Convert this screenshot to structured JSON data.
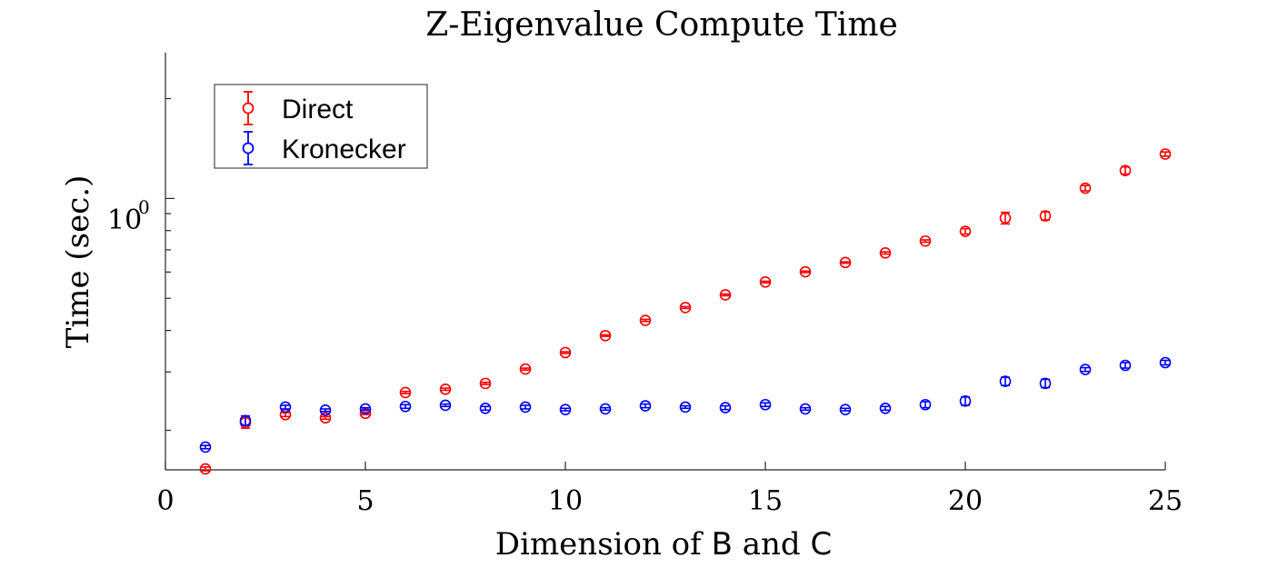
{
  "chart_data": {
    "type": "scatter",
    "title": "Z-Eigenvalue Compute Time",
    "xlabel": {
      "prefix": "Dimension of ",
      "b": "B",
      "middle": " and ",
      "c": "C"
    },
    "ylabel": "Time (sec.)",
    "xlim": [
      0,
      25
    ],
    "ylim": [
      0.152,
      2.75
    ],
    "yscale": "log",
    "x_ticks": [
      0,
      5,
      10,
      15,
      20,
      25
    ],
    "x_tick_labels": [
      "0",
      "5",
      "10",
      "15",
      "20",
      "25"
    ],
    "y_major_tick": {
      "value": 1,
      "base": "10",
      "exponent": "0"
    },
    "grid": false,
    "legend": "top-left",
    "series": [
      {
        "name": "Direct",
        "color": "#ff0000",
        "x": [
          1,
          2,
          3,
          4,
          5,
          6,
          7,
          8,
          9,
          10,
          11,
          12,
          13,
          14,
          15,
          16,
          17,
          18,
          19,
          20,
          21,
          22,
          23,
          24,
          25
        ],
        "y": [
          0.153,
          0.211,
          0.223,
          0.218,
          0.225,
          0.26,
          0.266,
          0.277,
          0.306,
          0.343,
          0.386,
          0.429,
          0.469,
          0.512,
          0.56,
          0.601,
          0.641,
          0.685,
          0.744,
          0.796,
          0.873,
          0.886,
          1.074,
          1.214,
          1.361
        ],
        "err": [
          0.002,
          0.008,
          0.003,
          0.002,
          0.002,
          0.002,
          0.002,
          0.002,
          0.002,
          0.002,
          0.002,
          0.003,
          0.003,
          0.003,
          0.003,
          0.003,
          0.003,
          0.005,
          0.006,
          0.015,
          0.035,
          0.025,
          0.02,
          0.03,
          0.02
        ]
      },
      {
        "name": "Kronecker",
        "color": "#0000ff",
        "x": [
          1,
          2,
          3,
          4,
          5,
          6,
          7,
          8,
          9,
          10,
          11,
          12,
          13,
          14,
          15,
          16,
          17,
          18,
          19,
          20,
          21,
          22,
          23,
          24,
          25
        ],
        "y": [
          0.178,
          0.214,
          0.235,
          0.23,
          0.232,
          0.236,
          0.238,
          0.233,
          0.235,
          0.231,
          0.232,
          0.237,
          0.235,
          0.234,
          0.239,
          0.232,
          0.231,
          0.233,
          0.239,
          0.245,
          0.281,
          0.277,
          0.305,
          0.314,
          0.32
        ],
        "err": [
          0.002,
          0.007,
          0.003,
          0.002,
          0.002,
          0.003,
          0.002,
          0.003,
          0.003,
          0.002,
          0.002,
          0.003,
          0.002,
          0.003,
          0.003,
          0.002,
          0.002,
          0.003,
          0.005,
          0.007,
          0.008,
          0.008,
          0.004,
          0.006,
          0.005
        ]
      }
    ]
  }
}
